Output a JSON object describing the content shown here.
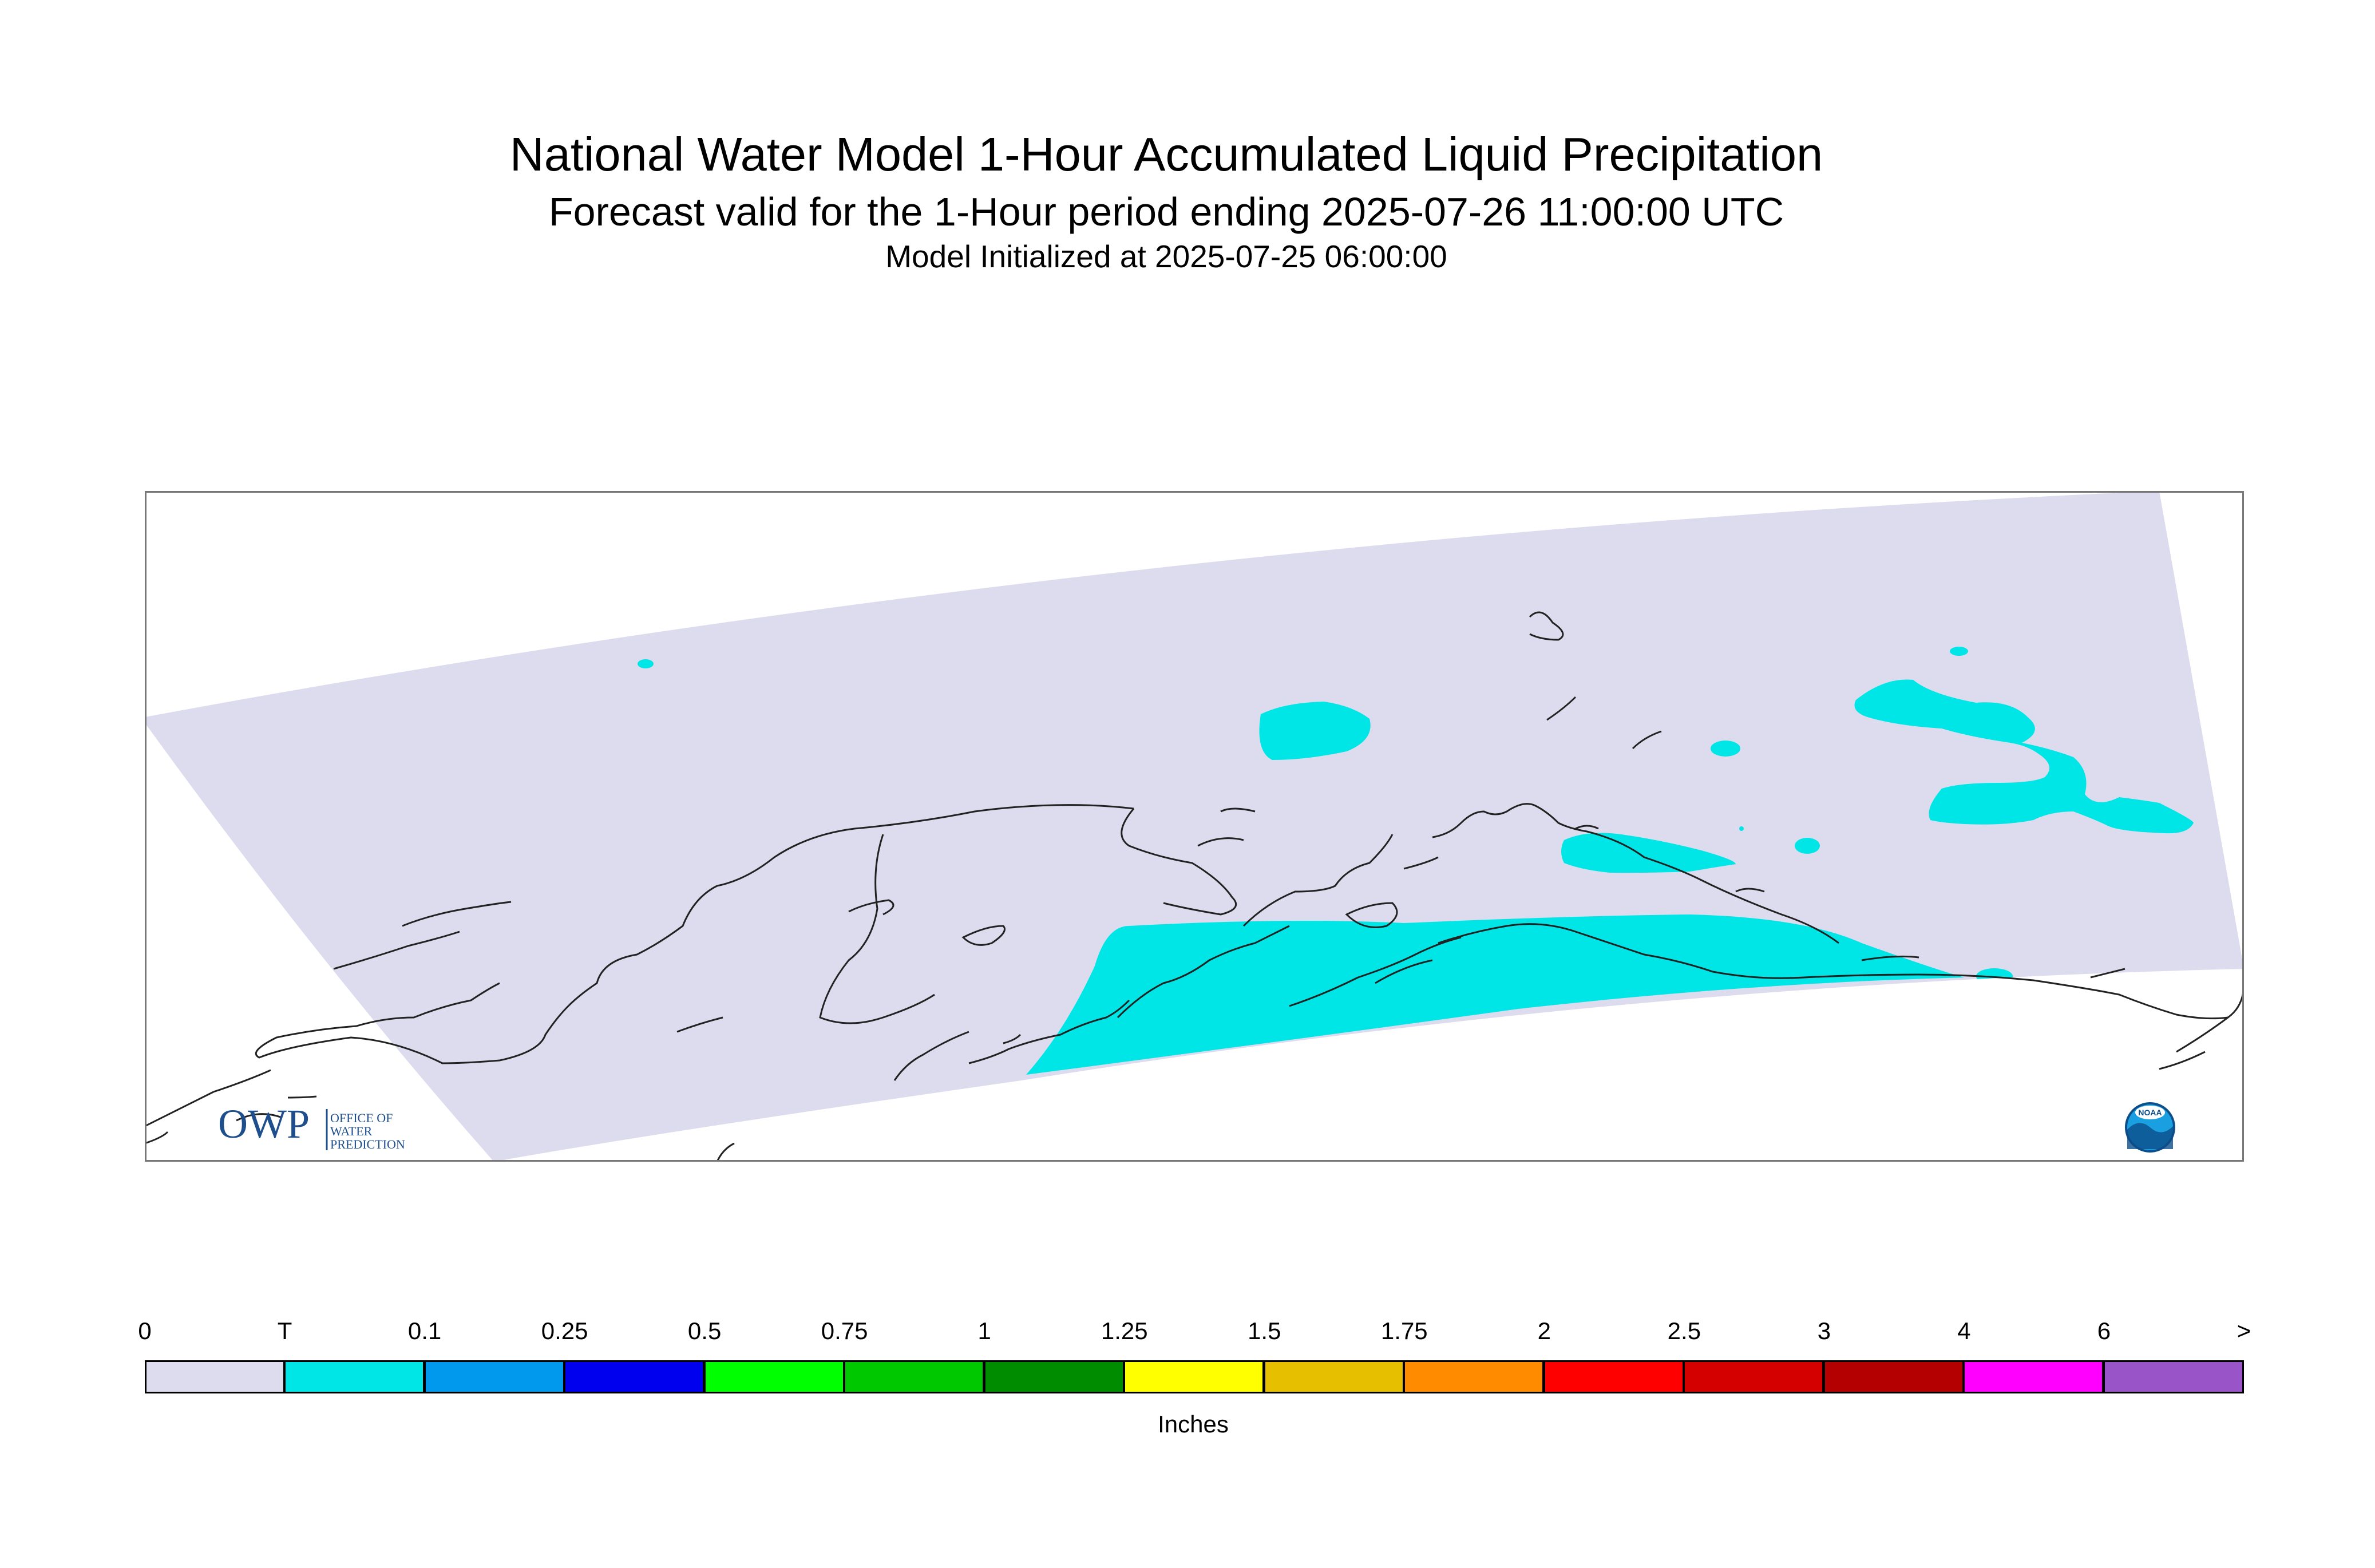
{
  "titles": {
    "main": "National Water Model 1-Hour Accumulated Liquid Precipitation",
    "sub": "Forecast valid for the 1-Hour period ending 2025-07-26 11:00:00 UTC",
    "init": "Model Initialized at 2025-07-25 06:00:00"
  },
  "logos": {
    "owp_text": "OWP",
    "owp_lines": [
      "OFFICE OF",
      "WATER",
      "PREDICTION"
    ],
    "noaa_text": "NOAA"
  },
  "legend": {
    "units": "Inches",
    "labels": [
      "0",
      "T",
      "0.1",
      "0.25",
      "0.5",
      "0.75",
      "1",
      "1.25",
      "1.5",
      "1.75",
      "2",
      "2.5",
      "3",
      "4",
      "6",
      ">"
    ],
    "colors": [
      "#dcdcee",
      "#00e6e6",
      "#0099ee",
      "#0000ee",
      "#00ff00",
      "#00c800",
      "#008c00",
      "#ffff00",
      "#e6c000",
      "#ff8c00",
      "#ff0000",
      "#d40000",
      "#b40000",
      "#ff00ff",
      "#9955c8"
    ]
  },
  "map_colors": {
    "domain_fill": "#dcdcee",
    "trace_precip": "#00e6e6",
    "coastline": "#222222",
    "frame": "#777777"
  }
}
